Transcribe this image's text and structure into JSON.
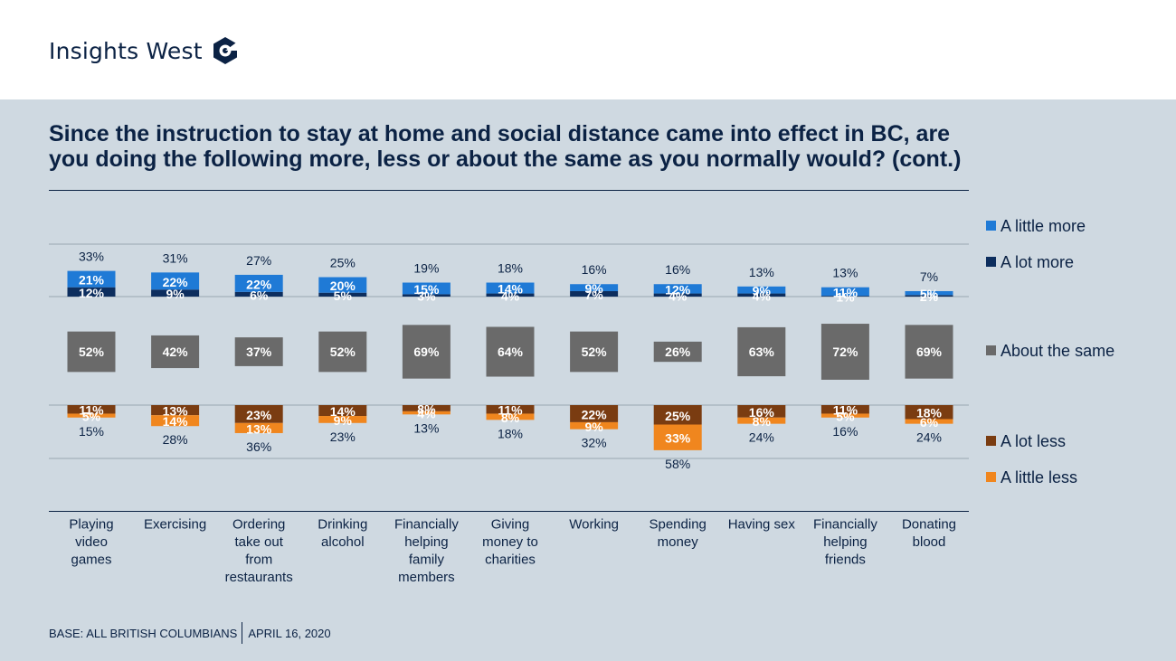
{
  "header": {
    "brand": "Insights West"
  },
  "title_line1": "Since the instruction to stay at home and social distance came into effect in BC, are",
  "title_line2": "you doing the following more, less or about the same as you normally would? (cont.)",
  "footer": {
    "base": "BASE: ALL BRITISH COLUMBIANS",
    "date": "APRIL 16, 2020"
  },
  "colors": {
    "a_lot_more": "#0d2e5e",
    "a_little_more": "#1f7ad6",
    "about_same": "#6a6a6a",
    "a_lot_less": "#7a3c11",
    "a_little_less": "#f0861e",
    "text": "#0b2244"
  },
  "chart_data": {
    "type": "bar",
    "categories": [
      [
        "Playing",
        "video",
        "games"
      ],
      [
        "Exercising"
      ],
      [
        "Ordering",
        "take out",
        "from",
        "restaurants"
      ],
      [
        "Drinking",
        "alcohol"
      ],
      [
        "Financially",
        "helping",
        "family",
        "members"
      ],
      [
        "Giving",
        "money to",
        "charities"
      ],
      [
        "Working"
      ],
      [
        "Spending",
        "money"
      ],
      [
        "Having sex"
      ],
      [
        "Financially",
        "helping",
        "friends"
      ],
      [
        "Donating",
        "blood"
      ]
    ],
    "series": [
      {
        "name": "A lot more",
        "values": [
          12,
          9,
          6,
          5,
          3,
          4,
          7,
          4,
          4,
          1,
          2
        ]
      },
      {
        "name": "A little more",
        "values": [
          21,
          22,
          22,
          20,
          15,
          14,
          9,
          12,
          9,
          11,
          5
        ]
      },
      {
        "name": "About the same",
        "values": [
          52,
          42,
          37,
          52,
          69,
          64,
          52,
          26,
          63,
          72,
          69
        ]
      },
      {
        "name": "A lot less",
        "values": [
          11,
          13,
          23,
          14,
          8,
          11,
          22,
          25,
          16,
          11,
          18
        ]
      },
      {
        "name": "A little less",
        "values": [
          5,
          14,
          13,
          9,
          4,
          8,
          9,
          33,
          8,
          5,
          6
        ]
      }
    ],
    "more_totals": [
      "33%",
      "31%",
      "27%",
      "25%",
      "19%",
      "18%",
      "16%",
      "16%",
      "13%",
      "13%",
      "7%"
    ],
    "less_totals": [
      "15%",
      "28%",
      "36%",
      "23%",
      "13%",
      "18%",
      "32%",
      "58%",
      "24%",
      "16%",
      "24%"
    ],
    "legend": [
      {
        "key": "a_little_more",
        "label": "A little more"
      },
      {
        "key": "a_lot_more",
        "label": "A lot more"
      },
      {
        "key": "about_same",
        "label": "About the same"
      },
      {
        "key": "a_lot_less",
        "label": "A lot less"
      },
      {
        "key": "a_little_less",
        "label": "A little less"
      }
    ],
    "value_suffix": "%",
    "legend_position": "right",
    "grid": true
  }
}
